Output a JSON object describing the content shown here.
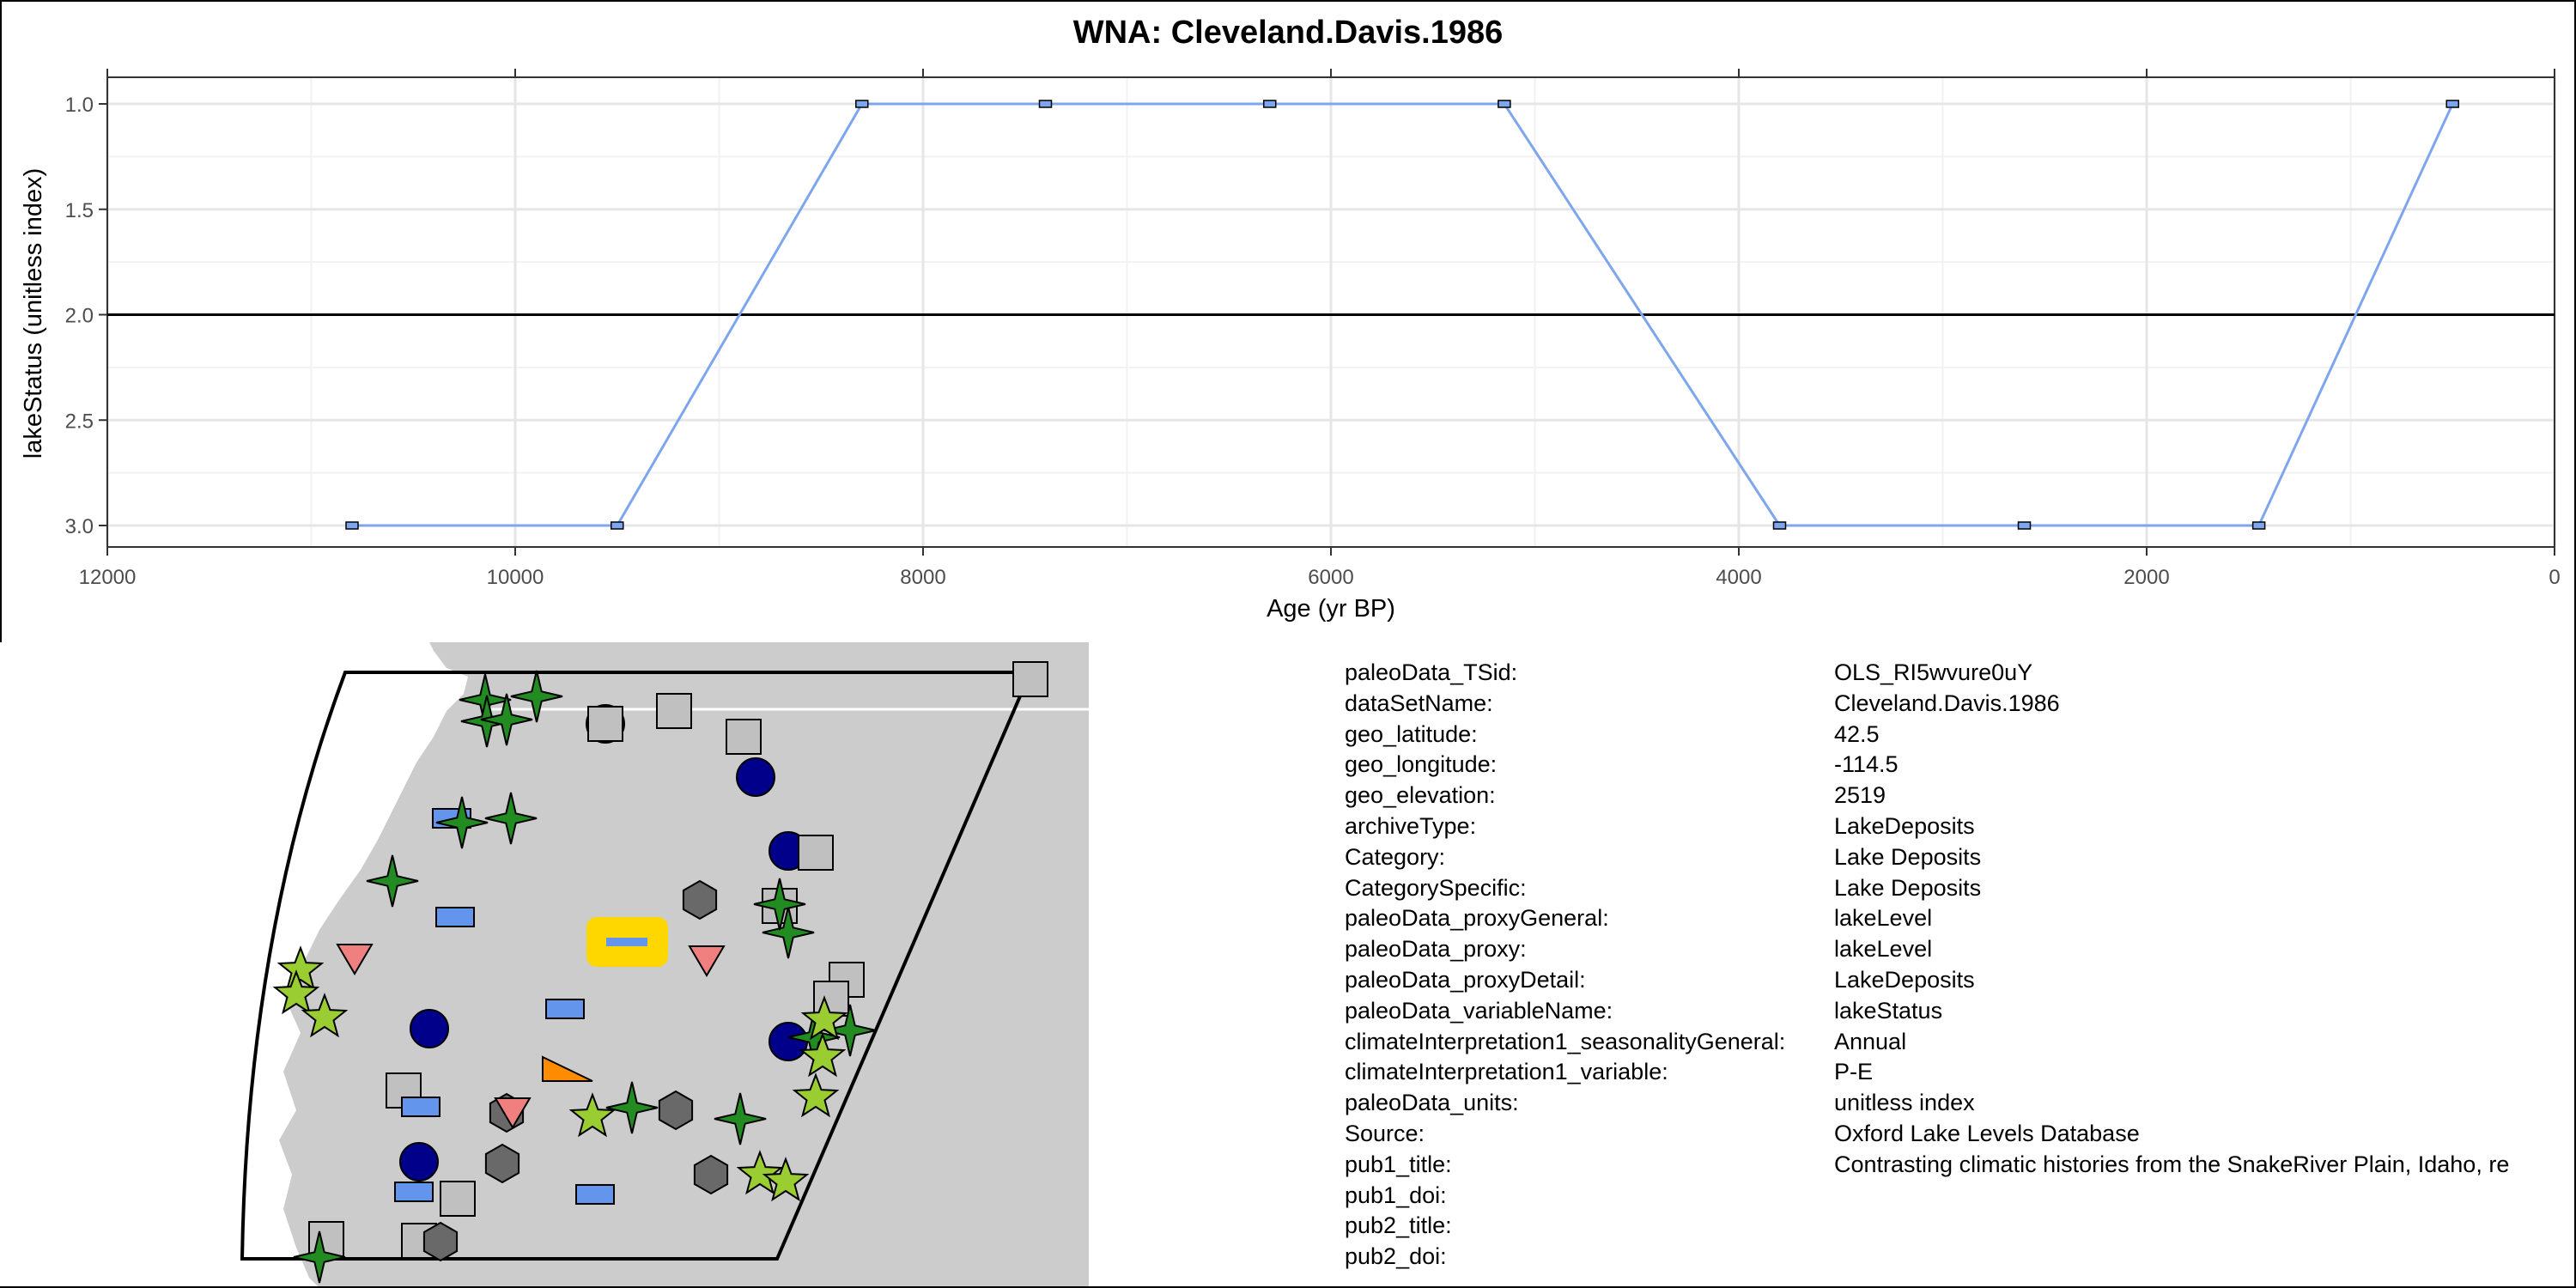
{
  "chart_data": {
    "type": "line",
    "title": "WNA: Cleveland.Davis.1986",
    "xlabel": "Age (yr BP)",
    "ylabel": "lakeStatus (unitless index)",
    "xlim": [
      12000,
      0
    ],
    "ylim": [
      3.0,
      1.0
    ],
    "x_reversed": true,
    "y_reversed": true,
    "x_ticks": [
      12000,
      10000,
      8000,
      6000,
      4000,
      2000,
      0
    ],
    "x_tick_labels": [
      "12000",
      "10000",
      "8000",
      "6000",
      "4000",
      "2000",
      "0"
    ],
    "y_ticks": [
      1.0,
      1.5,
      2.0,
      2.5,
      3.0
    ],
    "y_tick_labels": [
      "1.0",
      "1.5",
      "2.0",
      "2.5",
      "3.0"
    ],
    "reference_line_y": 2.0,
    "grid": true,
    "series": [
      {
        "color": "#7da6ee",
        "x": [
          10800,
          9500,
          8300,
          7400,
          6300,
          5150,
          3800,
          2600,
          1450,
          500
        ],
        "y": [
          3,
          3,
          1,
          1,
          1,
          1,
          3,
          3,
          3,
          1
        ]
      }
    ]
  },
  "metadata": [
    {
      "key": "paleoData_TSid:",
      "value": "OLS_RI5wvure0uY"
    },
    {
      "key": "dataSetName:",
      "value": "Cleveland.Davis.1986"
    },
    {
      "key": "geo_latitude:",
      "value": "42.5"
    },
    {
      "key": "geo_longitude:",
      "value": "-114.5"
    },
    {
      "key": "geo_elevation:",
      "value": "2519"
    },
    {
      "key": "archiveType:",
      "value": "LakeDeposits"
    },
    {
      "key": "Category:",
      "value": "Lake Deposits"
    },
    {
      "key": "CategorySpecific:",
      "value": "Lake Deposits"
    },
    {
      "key": "paleoData_proxyGeneral:",
      "value": "lakeLevel"
    },
    {
      "key": "paleoData_proxy:",
      "value": "lakeLevel"
    },
    {
      "key": "paleoData_proxyDetail:",
      "value": "LakeDeposits"
    },
    {
      "key": "paleoData_variableName:",
      "value": "lakeStatus"
    },
    {
      "key": "climateInterpretation1_seasonalityGeneral:",
      "value": "Annual"
    },
    {
      "key": "climateInterpretation1_variable:",
      "value": "P-E"
    },
    {
      "key": "paleoData_units:",
      "value": "unitless index"
    },
    {
      "key": "Source:",
      "value": "Oxford Lake Levels Database"
    },
    {
      "key": "pub1_title:",
      "value": "Contrasting climatic histories from the SnakeRiver Plain, Idaho, re"
    },
    {
      "key": "pub1_doi:",
      "value": ""
    },
    {
      "key": "pub2_title:",
      "value": ""
    },
    {
      "key": "pub2_doi:",
      "value": ""
    }
  ],
  "map": {
    "land_color": "#cccccc",
    "ocean_color": "#ffffff",
    "highlight_color": "#ffd700",
    "marker_types": [
      {
        "shape": "circle",
        "color": "#00008b"
      },
      {
        "shape": "square",
        "color": "#c0c0c0"
      },
      {
        "shape": "rect",
        "color": "#6495ed"
      },
      {
        "shape": "star4",
        "color": "#228b22"
      },
      {
        "shape": "star5",
        "color": "#9acd32"
      },
      {
        "shape": "hexagon",
        "color": "#696969"
      },
      {
        "shape": "triangle-down",
        "color": "#f08080"
      },
      {
        "shape": "triangle",
        "color": "#ff8c00"
      }
    ]
  }
}
